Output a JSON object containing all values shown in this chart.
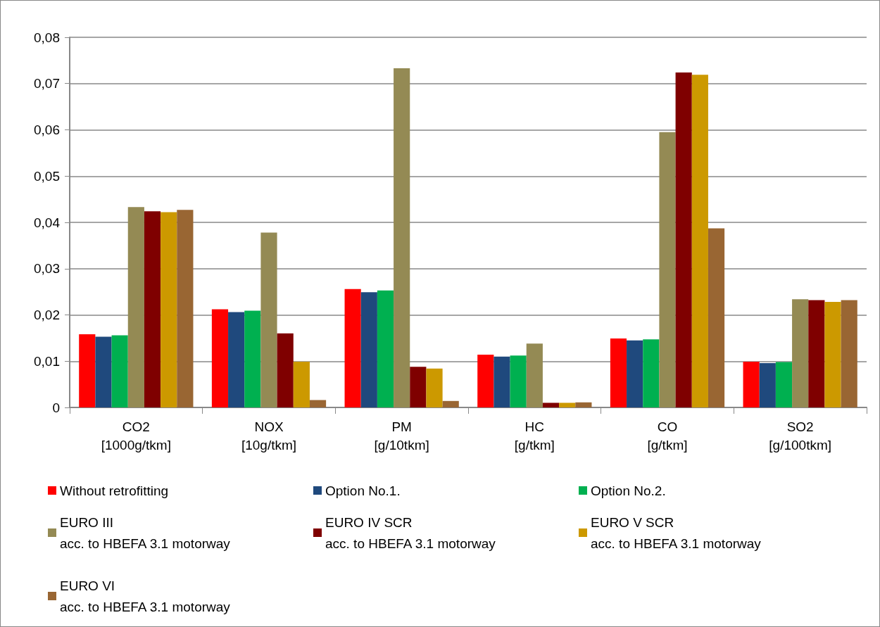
{
  "chart_data": {
    "type": "bar",
    "categories": [
      "CO2 [1000g/tkm]",
      "NOX [10g/tkm]",
      "PM [g/10tkm]",
      "HC [g/tkm]",
      "CO [g/tkm]",
      "SO2 [g/100tkm]"
    ],
    "series": [
      {
        "name": "Without retrofitting",
        "color": "#ff0000",
        "values": [
          0.0158,
          0.0212,
          0.0256,
          0.0114,
          0.0149,
          0.0099
        ]
      },
      {
        "name": "Option No.1.",
        "color": "#1f497d",
        "values": [
          0.0153,
          0.0206,
          0.0249,
          0.011,
          0.0145,
          0.0096
        ]
      },
      {
        "name": "Option No.2.",
        "color": "#00b050",
        "values": [
          0.0156,
          0.0209,
          0.0253,
          0.0112,
          0.0147,
          0.0098
        ]
      },
      {
        "name": "EURO III\nacc. to HBEFA 3.1 motorway",
        "color": "#948a54",
        "values": [
          0.0433,
          0.0378,
          0.0733,
          0.0138,
          0.0595,
          0.0234
        ]
      },
      {
        "name": "EURO IV SCR\nacc. to HBEFA 3.1 motorway",
        "color": "#7f0000",
        "values": [
          0.0424,
          0.016,
          0.0088,
          0.001,
          0.0724,
          0.0232
        ]
      },
      {
        "name": "EURO V SCR\nacc. to HBEFA 3.1 motorway",
        "color": "#cc9900",
        "values": [
          0.0422,
          0.0099,
          0.0084,
          0.001,
          0.0719,
          0.0228
        ]
      },
      {
        "name": "EURO VI\nacc. to HBEFA 3.1 motorway",
        "color": "#996633",
        "values": [
          0.0427,
          0.0016,
          0.0014,
          0.0011,
          0.0387,
          0.0232
        ]
      }
    ],
    "ylim": [
      0,
      0.08
    ],
    "yticks": [
      {
        "value": 0,
        "label": "0"
      },
      {
        "value": 0.01,
        "label": "0,01"
      },
      {
        "value": 0.02,
        "label": "0,02"
      },
      {
        "value": 0.03,
        "label": "0,03"
      },
      {
        "value": 0.04,
        "label": "0,04"
      },
      {
        "value": 0.05,
        "label": "0,05"
      },
      {
        "value": 0.06,
        "label": "0,06"
      },
      {
        "value": 0.07,
        "label": "0,07"
      },
      {
        "value": 0.08,
        "label": "0,08"
      }
    ],
    "grid": "y",
    "legend": "bottom"
  }
}
